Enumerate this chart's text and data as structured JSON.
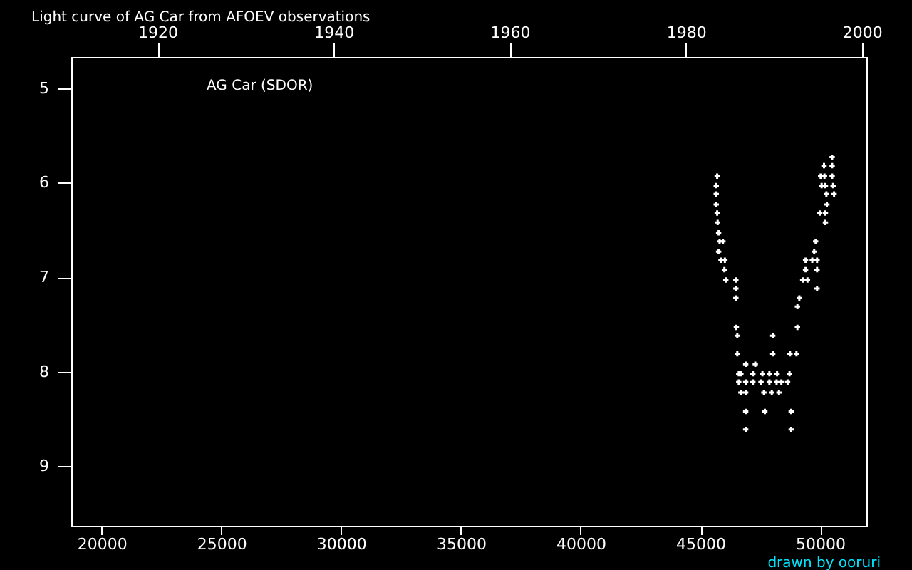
{
  "chart_data": {
    "type": "scatter",
    "title": "Light curve of AG Car from AFOEV observations",
    "annotations": [
      "AG Car (SDOR)",
      "drawn by ooruri"
    ],
    "xlim": [
      18730,
      51930
    ],
    "xticks": [
      20000,
      25000,
      30000,
      35000,
      40000,
      45000,
      50000
    ],
    "x2lim": [
      1910.2,
      2000.5
    ],
    "x2ticks": [
      1920,
      1940,
      1960,
      1980,
      2000
    ],
    "ylim": [
      9.63,
      4.67
    ],
    "yticks": [
      5,
      6,
      7,
      8,
      9
    ],
    "grid": false,
    "marker": "cross",
    "series": [
      {
        "color": "#ffffff",
        "x": [
          45700,
          45660,
          45660,
          45660,
          45700,
          45720,
          45760,
          45800,
          45940,
          45760,
          45860,
          46020,
          46000,
          46060,
          46480,
          46480,
          46480,
          46500,
          46540,
          46540,
          46890,
          47290,
          46690,
          47190,
          46600,
          47590,
          47880,
          48200,
          48720,
          46600,
          46890,
          47190,
          47530,
          47880,
          48180,
          48380,
          48640,
          46690,
          46890,
          47650,
          47980,
          48280,
          46890,
          47690,
          48790,
          46890,
          48790,
          48020,
          48020,
          48740,
          49010,
          49050,
          49050,
          49130,
          49870,
          49270,
          49470,
          49390,
          49870,
          49390,
          49670,
          49870,
          49750,
          49810,
          50220,
          49980,
          50220,
          50280,
          50260,
          50580,
          50060,
          50220,
          50540,
          50020,
          50180,
          50500,
          50160,
          50500,
          50500
        ],
        "values": [
          5.93,
          6.03,
          6.12,
          6.23,
          6.32,
          6.42,
          6.53,
          6.62,
          6.62,
          6.73,
          6.82,
          6.82,
          6.92,
          7.03,
          7.03,
          7.12,
          7.22,
          7.53,
          7.62,
          7.81,
          7.92,
          7.92,
          8.02,
          8.02,
          8.02,
          8.02,
          8.02,
          8.02,
          8.02,
          8.11,
          8.11,
          8.11,
          8.11,
          8.11,
          8.11,
          8.11,
          8.11,
          8.22,
          8.22,
          8.22,
          8.22,
          8.22,
          8.42,
          8.42,
          8.42,
          8.61,
          8.61,
          7.62,
          7.81,
          7.81,
          7.81,
          7.53,
          7.31,
          7.22,
          7.12,
          7.03,
          7.03,
          6.92,
          6.92,
          6.82,
          6.82,
          6.82,
          6.73,
          6.62,
          6.42,
          6.32,
          6.32,
          6.23,
          6.12,
          6.12,
          6.03,
          6.03,
          6.03,
          5.93,
          5.93,
          5.93,
          5.82,
          5.82,
          5.73
        ]
      }
    ]
  }
}
